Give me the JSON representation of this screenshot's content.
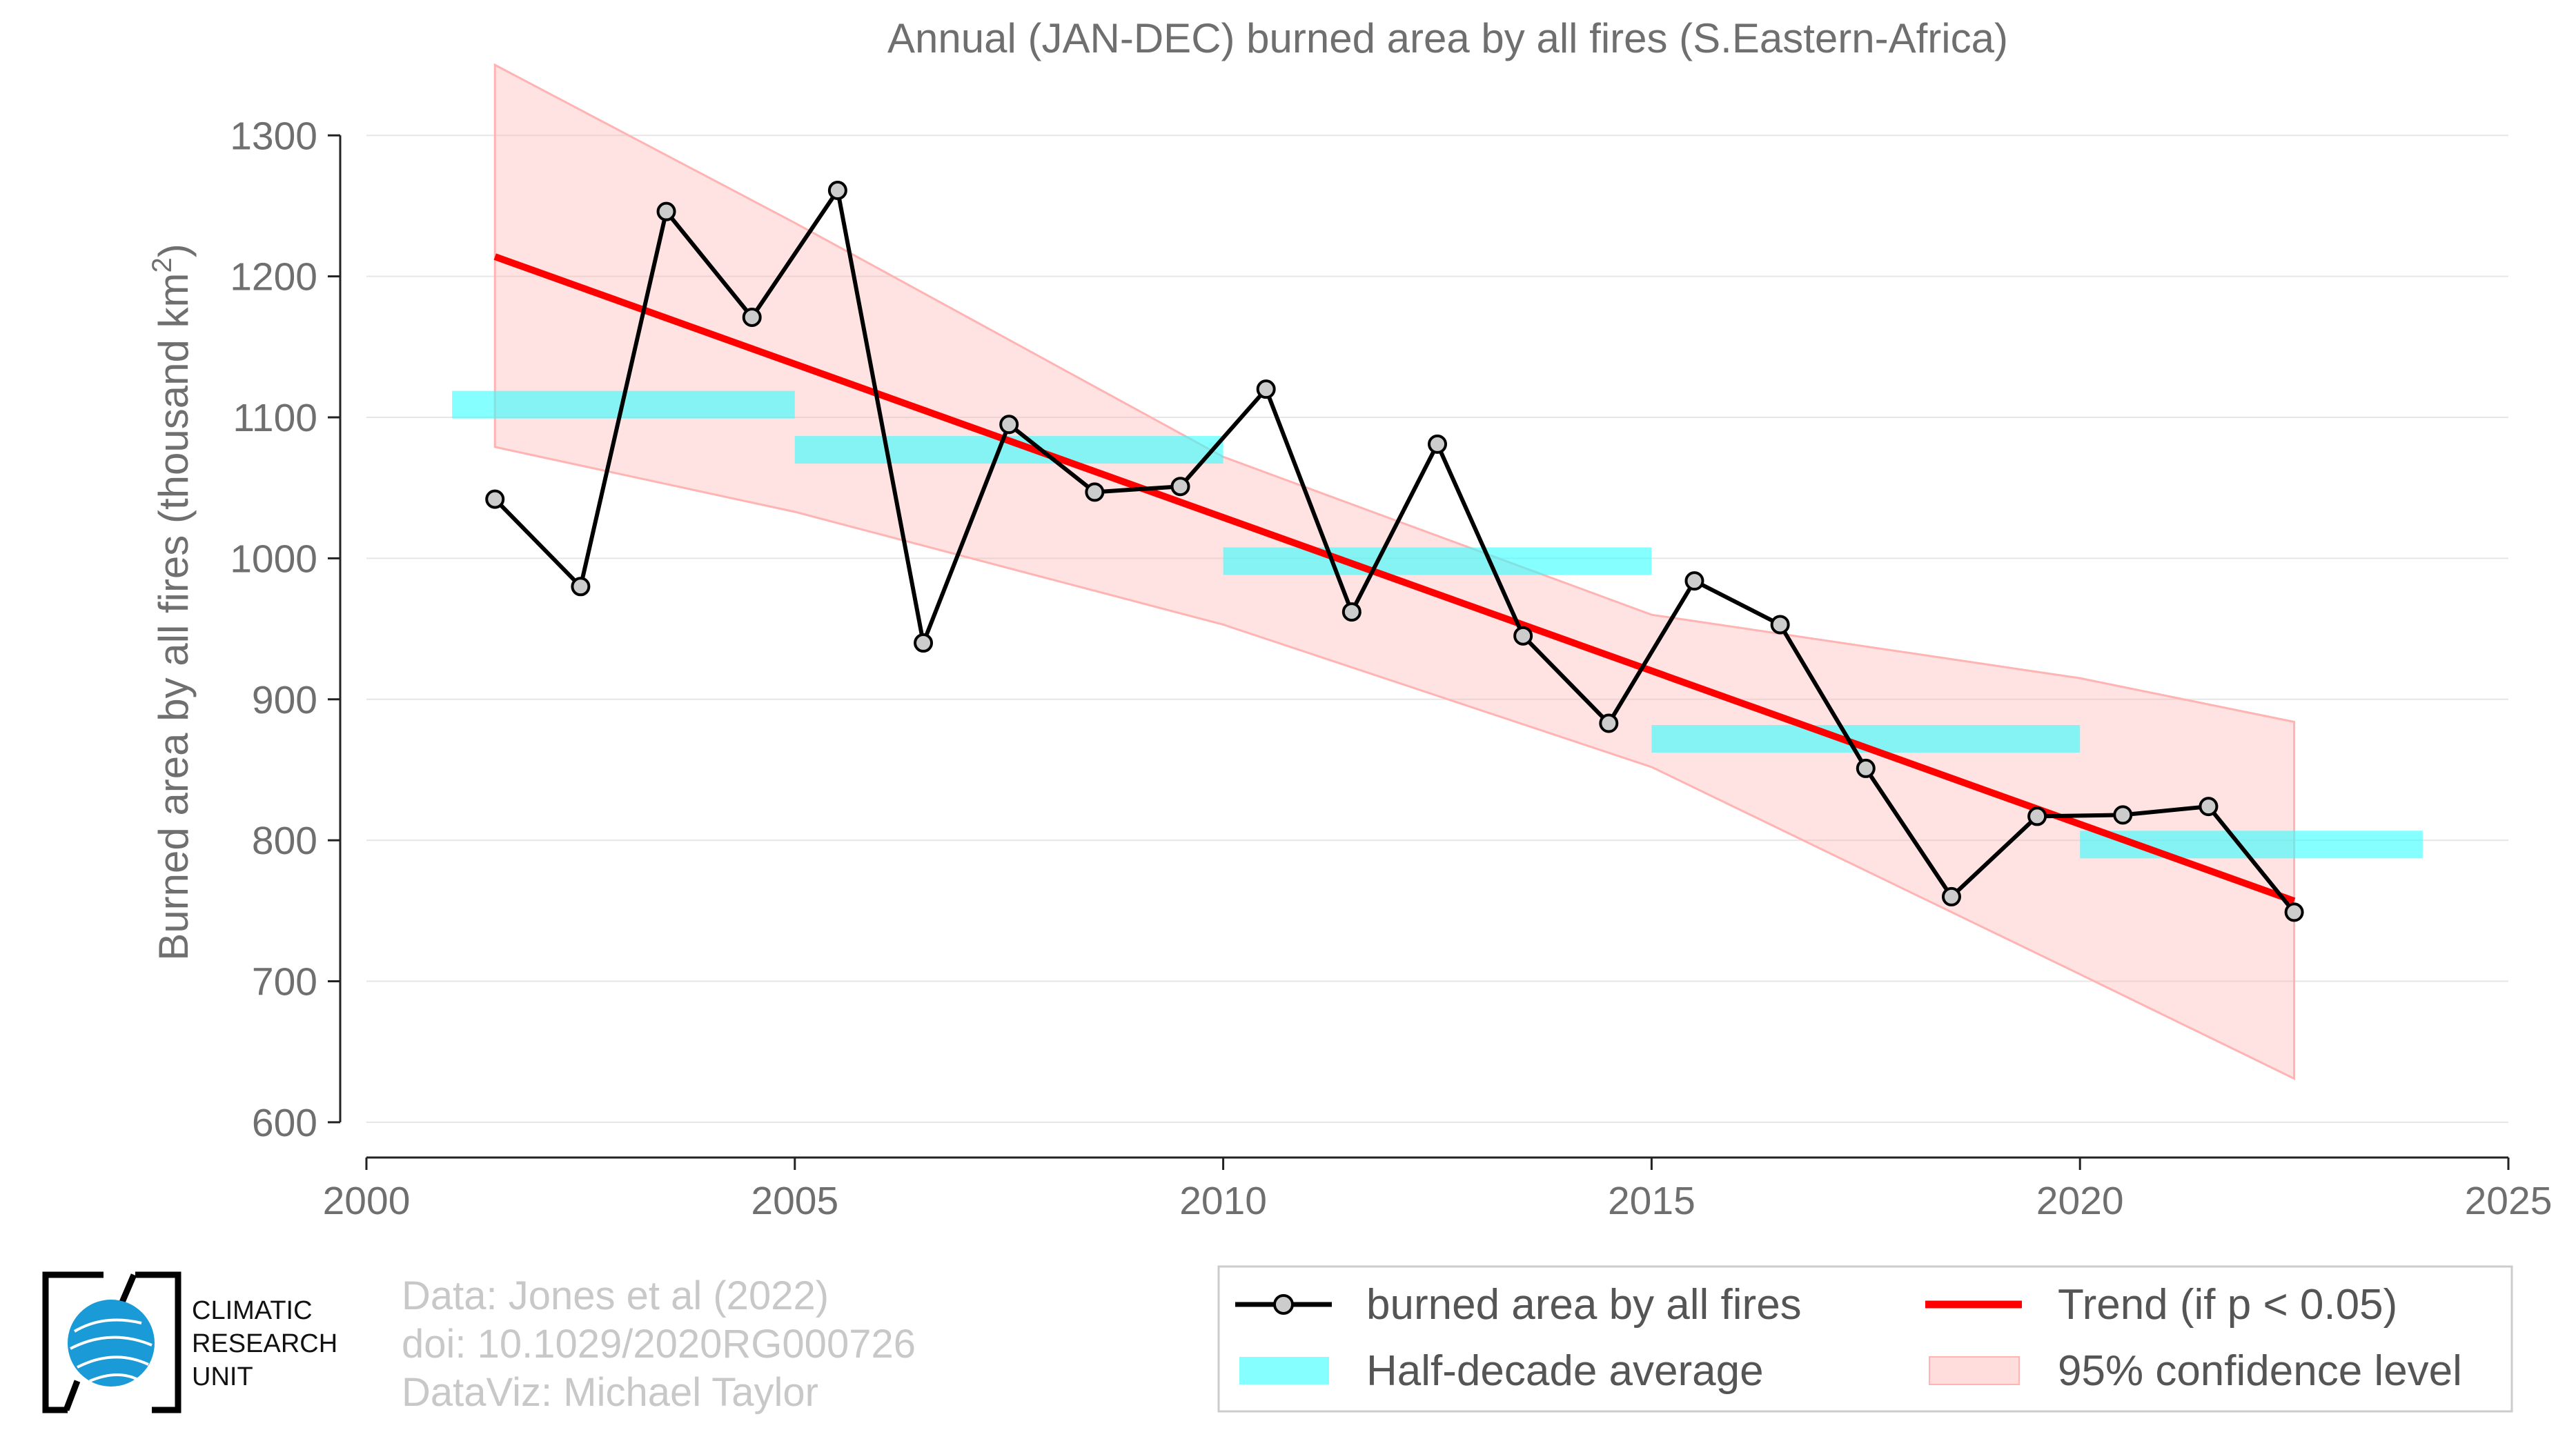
{
  "colors": {
    "series": "#000000",
    "marker_fill": "#cccccc",
    "trend": "#ff0000",
    "band": "#ffb3b3",
    "half_decade": "#33ffff",
    "grid": "#e6e6e6",
    "text": "#6f6f6f",
    "credit": "#c8c8c8"
  },
  "chart_data": {
    "type": "line",
    "title": "Annual (JAN-DEC) burned area by all fires (S.Eastern-Africa)",
    "ylabel": "Burned area by all fires (thousand km",
    "ylabel_superscript": "2",
    "ylabel_close": ")",
    "xlabel": "",
    "xlim": [
      2000,
      2025
    ],
    "ylim": [
      575,
      1330
    ],
    "xticks": [
      2000,
      2005,
      2010,
      2015,
      2020,
      2025
    ],
    "xtick_labels": [
      "2000",
      "2005",
      "2010",
      "2015",
      "2020",
      "2025"
    ],
    "yticks": [
      600,
      700,
      800,
      900,
      1000,
      1100,
      1200,
      1300
    ],
    "ytick_labels": [
      "600",
      "700",
      "800",
      "900",
      "1000",
      "1100",
      "1200",
      "1300"
    ],
    "grid": "horizontal",
    "legend_position": "bottom-right",
    "series": [
      {
        "name": "burned area by all fires",
        "type": "line-marker",
        "x": [
          2001.5,
          2002.5,
          2003.5,
          2004.5,
          2005.5,
          2006.5,
          2007.5,
          2008.5,
          2009.5,
          2010.5,
          2011.5,
          2012.5,
          2013.5,
          2014.5,
          2015.5,
          2016.5,
          2017.5,
          2018.5,
          2019.5,
          2020.5,
          2021.5,
          2022.5
        ],
        "y": [
          1042,
          980,
          1246,
          1171,
          1261,
          940,
          1095,
          1047,
          1051,
          1120,
          962,
          1081,
          945,
          883,
          984,
          953,
          851,
          760,
          817,
          818,
          824,
          749
        ]
      },
      {
        "name": "Trend (if p < 0.05)",
        "type": "line",
        "x": [
          2001.5,
          2022.5
        ],
        "y": [
          1214,
          757
        ]
      },
      {
        "name": "Half-decade average",
        "type": "segments",
        "segments": [
          {
            "x0": 2001,
            "x1": 2005,
            "y": 1109
          },
          {
            "x0": 2005,
            "x1": 2010,
            "y": 1077
          },
          {
            "x0": 2010,
            "x1": 2015,
            "y": 998
          },
          {
            "x0": 2015,
            "x1": 2020,
            "y": 872
          },
          {
            "x0": 2020,
            "x1": 2024,
            "y": 797
          }
        ]
      },
      {
        "name": "95% confidence level",
        "type": "band",
        "x": [
          2001.5,
          2005,
          2010,
          2015,
          2020,
          2022.5
        ],
        "upper": [
          1350,
          1238,
          1072,
          960,
          915,
          884
        ],
        "lower": [
          1079,
          1033,
          953,
          852,
          705,
          631
        ]
      }
    ]
  },
  "credits": {
    "line1": "Data: Jones et al (2022)",
    "line2": "doi: 10.1029/2020RG000726",
    "line3": "DataViz: Michael Taylor"
  },
  "logo": {
    "line1": "CLIMATIC",
    "line2": "RESEARCH",
    "line3": "UNIT"
  }
}
